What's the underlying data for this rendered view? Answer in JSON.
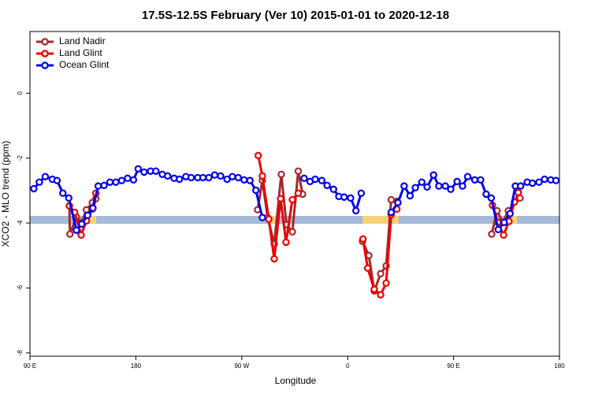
{
  "chart_data": {
    "type": "line",
    "title": "17.5S-12.5S February (Ver 10)   2015-01-01 to 2020-12-18",
    "x_label": "Longitude",
    "y_label": "XCO2 - MLO trend (ppm)",
    "xlim": [
      90,
      540
    ],
    "xticks": [
      {
        "value": 90,
        "label": "90 E"
      },
      180,
      {
        "value": 270,
        "label": "90 W"
      },
      {
        "value": 360,
        "label": "0"
      },
      {
        "value": 450,
        "label": "90 E"
      },
      {
        "value": 540,
        "label": "180"
      }
    ],
    "ylim": [
      -8.1,
      1.9
    ],
    "yticks": [
      0,
      -2,
      -4,
      -6,
      -8
    ],
    "legend": "top-left",
    "series": [
      {
        "name": "Land Nadir",
        "color": "#a52a2a",
        "x": [
          123.5,
          124,
          129.5,
          134,
          138,
          143,
          146,
          200,
          283.5,
          287.5,
          292,
          297.6,
          303.6,
          308,
          313,
          318,
          321.7,
          350,
          372.6,
          378,
          382.6,
          388,
          392.7,
          397,
          402,
          450,
          482.4,
          487,
          491.8,
          496.5,
          506.5
        ],
        "values": [
          -3.47,
          -4.34,
          -3.81,
          -3.98,
          -3.59,
          -3.37,
          -3.25,
          null,
          -3.59,
          -2.69,
          -3.83,
          -4.64,
          -2.5,
          -4.05,
          -4.27,
          -2.4,
          -3.11,
          null,
          -4.56,
          -5.0,
          -6.09,
          -5.56,
          -5.32,
          -3.28,
          -3.33,
          null,
          -4.34,
          -3.62,
          -3.98,
          -3.62,
          -3.23
        ]
      },
      {
        "name": "Land Glint",
        "color": "#ee0000",
        "x": [
          123.5,
          128,
          133.5,
          138,
          143,
          146,
          200,
          284,
          287.5,
          293,
          297.6,
          303,
          307.6,
          313,
          318,
          350,
          373,
          377,
          382.6,
          388,
          392.7,
          397,
          401.8,
          450,
          483,
          487.6,
          492.5,
          497,
          501.8,
          505
        ],
        "values": [
          -3.47,
          -3.67,
          -4.37,
          -3.93,
          -3.57,
          -3.08,
          null,
          -1.92,
          -2.55,
          -3.88,
          -5.1,
          -3.25,
          -4.59,
          -3.28,
          -3.08,
          null,
          -4.49,
          -5.39,
          -6.04,
          -6.21,
          -5.85,
          -3.74,
          -3.57,
          null,
          -3.45,
          -3.98,
          -4.37,
          -3.95,
          -3.35,
          -3.06
        ]
      },
      {
        "name": "Ocean Glint",
        "color": "#0000ee",
        "x": [
          93.3,
          98,
          103,
          109,
          113,
          118,
          123,
          129.5,
          134,
          139,
          143.5,
          148,
          153,
          158,
          163,
          168,
          173,
          178,
          182,
          187,
          192.5,
          197,
          202.5,
          207,
          212.5,
          217,
          222.5,
          227,
          232.6,
          237,
          242,
          247,
          252,
          257.5,
          262,
          267,
          272,
          277,
          282,
          287.5,
          305,
          323,
          328,
          332.4,
          338,
          342.5,
          348,
          352.5,
          357,
          362.5,
          367,
          371.5,
          385,
          397,
          402.7,
          408,
          413,
          417.5,
          423,
          427.5,
          433,
          437.5,
          443,
          447.6,
          453,
          457.6,
          462,
          468,
          473,
          477.7,
          482,
          488,
          493,
          498,
          502.5,
          507,
          512.6,
          517,
          522.6,
          527.3,
          532.6,
          537
        ],
        "values": [
          -2.94,
          -2.74,
          -2.57,
          -2.65,
          -2.69,
          -3.08,
          -3.23,
          -4.22,
          -4.03,
          -3.76,
          -3.54,
          -2.86,
          -2.84,
          -2.74,
          -2.74,
          -2.69,
          -2.62,
          -2.67,
          -2.33,
          -2.43,
          -2.4,
          -2.4,
          -2.5,
          -2.55,
          -2.62,
          -2.65,
          -2.57,
          -2.6,
          -2.6,
          -2.6,
          -2.6,
          -2.52,
          -2.55,
          -2.65,
          -2.57,
          -2.6,
          -2.67,
          -2.69,
          -2.99,
          -3.83,
          null,
          -2.62,
          -2.72,
          -2.65,
          -2.69,
          -2.84,
          -2.96,
          -3.18,
          -3.2,
          -3.23,
          -3.62,
          -3.08,
          null,
          -3.67,
          -3.37,
          -2.86,
          -3.16,
          -2.91,
          -2.74,
          -2.89,
          -2.52,
          -2.86,
          -2.86,
          -2.96,
          -2.72,
          -2.86,
          -2.57,
          -2.67,
          -2.67,
          -3.11,
          -3.23,
          -4.2,
          -3.98,
          -3.71,
          -2.86,
          -2.86,
          -2.74,
          -2.77,
          -2.74,
          -2.65,
          -2.67,
          -2.69
        ]
      }
    ]
  }
}
